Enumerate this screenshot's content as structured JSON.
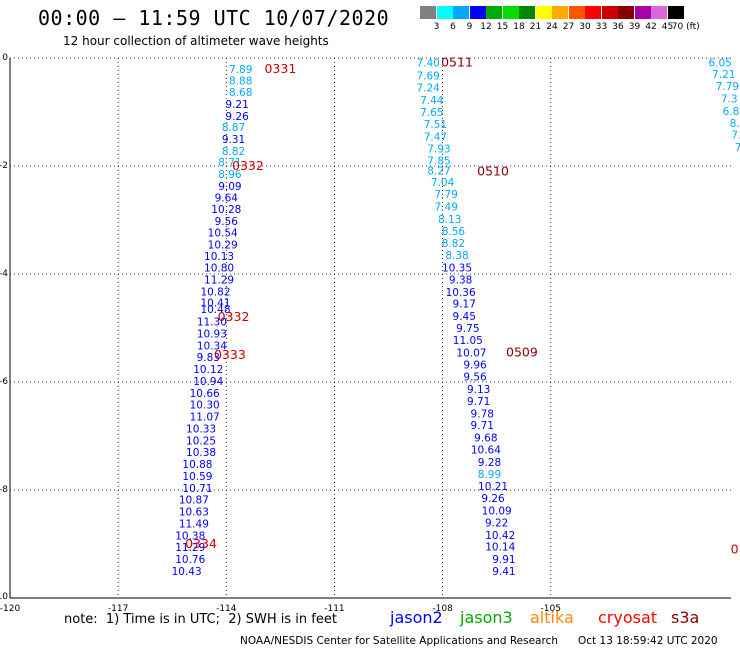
{
  "header": {
    "title": "00:00 — 11:59 UTC 10/07/2020",
    "subtitle": "12 hour collection of altimeter wave heights"
  },
  "colorbar": {
    "labels": [
      "3",
      "6",
      "9",
      "12",
      "15",
      "18",
      "21",
      "24",
      "27",
      "30",
      "33",
      "36",
      "39",
      "42",
      "45",
      "70 (ft)"
    ],
    "colors": [
      "#808080",
      "#00ffff",
      "#00aaff",
      "#0000ff",
      "#00aa00",
      "#00dd00",
      "#008800",
      "#ffff00",
      "#ffaa00",
      "#ff5500",
      "#ff0000",
      "#cc0000",
      "#880000",
      "#aa00aa",
      "#dd66dd",
      "#000000"
    ]
  },
  "chart_data": {
    "type": "scatter",
    "xlim": [
      -120,
      -100
    ],
    "ylim": [
      -10,
      0
    ],
    "x_ticks": [
      "-120",
      "-117",
      "-114",
      "-111",
      "-108",
      "-105"
    ],
    "y_ticks": [
      "0",
      "-2",
      "-4",
      "-6",
      "-8",
      "-10"
    ],
    "grid": true,
    "points": [
      {
        "x": -113.6,
        "y": -0.2,
        "v": "7.89",
        "c": "#00aaff"
      },
      {
        "x": -113.6,
        "y": -0.42,
        "v": "8.88",
        "c": "#00aaff"
      },
      {
        "x": -113.6,
        "y": -0.63,
        "v": "8.68",
        "c": "#00aaff"
      },
      {
        "x": -113.7,
        "y": -0.85,
        "v": "9.21",
        "c": "#0000ff"
      },
      {
        "x": -113.7,
        "y": -1.07,
        "v": "9.26",
        "c": "#0000ff"
      },
      {
        "x": -113.8,
        "y": -1.28,
        "v": "8.87",
        "c": "#00aaff"
      },
      {
        "x": -113.8,
        "y": -1.5,
        "v": "9.31",
        "c": "#0000ff"
      },
      {
        "x": -113.8,
        "y": -1.72,
        "v": "8.82",
        "c": "#00aaff"
      },
      {
        "x": -113.9,
        "y": -1.93,
        "v": "8.71",
        "c": "#00aaff"
      },
      {
        "x": -113.9,
        "y": -2.15,
        "v": "8.96",
        "c": "#00aaff"
      },
      {
        "x": -113.9,
        "y": -2.37,
        "v": "9.09",
        "c": "#0000ff"
      },
      {
        "x": -114.0,
        "y": -2.58,
        "v": "9.64",
        "c": "#0000ff"
      },
      {
        "x": -114.0,
        "y": -2.8,
        "v": "10.28",
        "c": "#0000ff"
      },
      {
        "x": -114.0,
        "y": -3.02,
        "v": "9.56",
        "c": "#0000ff"
      },
      {
        "x": -114.1,
        "y": -3.23,
        "v": "10.54",
        "c": "#0000ff"
      },
      {
        "x": -114.1,
        "y": -3.45,
        "v": "10.29",
        "c": "#0000ff"
      },
      {
        "x": -114.2,
        "y": -3.67,
        "v": "10.13",
        "c": "#0000ff"
      },
      {
        "x": -114.2,
        "y": -3.88,
        "v": "10.80",
        "c": "#0000ff"
      },
      {
        "x": -114.2,
        "y": -4.1,
        "v": "11.29",
        "c": "#0000ff"
      },
      {
        "x": -114.3,
        "y": -4.32,
        "v": "10.82",
        "c": "#0000ff"
      },
      {
        "x": -114.3,
        "y": -4.53,
        "v": "10.41",
        "c": "#0000ff"
      },
      {
        "x": -114.3,
        "y": -4.65,
        "v": "10.48",
        "c": "#0000ff"
      },
      {
        "x": -114.4,
        "y": -4.88,
        "v": "11.30",
        "c": "#0000ff"
      },
      {
        "x": -114.4,
        "y": -5.1,
        "v": "10.93",
        "c": "#0000ff"
      },
      {
        "x": -114.4,
        "y": -5.32,
        "v": "10.34",
        "c": "#0000ff"
      },
      {
        "x": -114.5,
        "y": -5.54,
        "v": "9.83",
        "c": "#0000ff"
      },
      {
        "x": -114.5,
        "y": -5.76,
        "v": "10.12",
        "c": "#0000ff"
      },
      {
        "x": -114.5,
        "y": -5.98,
        "v": "10.94",
        "c": "#0000ff"
      },
      {
        "x": -114.6,
        "y": -6.2,
        "v": "10.66",
        "c": "#0000ff"
      },
      {
        "x": -114.6,
        "y": -6.42,
        "v": "10.30",
        "c": "#0000ff"
      },
      {
        "x": -114.6,
        "y": -6.64,
        "v": "11.07",
        "c": "#0000ff"
      },
      {
        "x": -114.7,
        "y": -6.86,
        "v": "10.33",
        "c": "#0000ff"
      },
      {
        "x": -114.7,
        "y": -7.08,
        "v": "10.25",
        "c": "#0000ff"
      },
      {
        "x": -114.7,
        "y": -7.3,
        "v": "10.38",
        "c": "#0000ff"
      },
      {
        "x": -114.8,
        "y": -7.52,
        "v": "10.88",
        "c": "#0000ff"
      },
      {
        "x": -114.8,
        "y": -7.74,
        "v": "10.59",
        "c": "#0000ff"
      },
      {
        "x": -114.8,
        "y": -7.96,
        "v": "10.71",
        "c": "#0000ff"
      },
      {
        "x": -114.9,
        "y": -8.18,
        "v": "10.87",
        "c": "#0000ff"
      },
      {
        "x": -114.9,
        "y": -8.4,
        "v": "10.63",
        "c": "#0000ff"
      },
      {
        "x": -114.9,
        "y": -8.62,
        "v": "11.49",
        "c": "#0000ff"
      },
      {
        "x": -115.0,
        "y": -8.84,
        "v": "10.38",
        "c": "#0000ff"
      },
      {
        "x": -115.0,
        "y": -9.06,
        "v": "11.29",
        "c": "#0000ff"
      },
      {
        "x": -115.0,
        "y": -9.28,
        "v": "10.76",
        "c": "#0000ff"
      },
      {
        "x": -115.1,
        "y": -9.5,
        "v": "10.43",
        "c": "#0000ff"
      },
      {
        "x": -108.4,
        "y": -0.08,
        "v": "7.40",
        "c": "#00aaff"
      },
      {
        "x": -108.4,
        "y": -0.32,
        "v": "7.69",
        "c": "#00aaff"
      },
      {
        "x": -108.4,
        "y": -0.55,
        "v": "7.24",
        "c": "#00aaff"
      },
      {
        "x": -108.3,
        "y": -0.78,
        "v": "7.44",
        "c": "#00aaff"
      },
      {
        "x": -108.3,
        "y": -1.0,
        "v": "7.65",
        "c": "#00aaff"
      },
      {
        "x": -108.2,
        "y": -1.22,
        "v": "7.51",
        "c": "#00aaff"
      },
      {
        "x": -108.2,
        "y": -1.45,
        "v": "7.47",
        "c": "#00aaff"
      },
      {
        "x": -108.1,
        "y": -1.68,
        "v": "7.93",
        "c": "#00aaff"
      },
      {
        "x": -108.1,
        "y": -1.9,
        "v": "7.85",
        "c": "#00aaff"
      },
      {
        "x": -108.1,
        "y": -2.08,
        "v": "8.27",
        "c": "#00aaff"
      },
      {
        "x": -108.0,
        "y": -2.3,
        "v": "7.04",
        "c": "#00aaff"
      },
      {
        "x": -107.9,
        "y": -2.52,
        "v": "7.79",
        "c": "#00aaff"
      },
      {
        "x": -107.9,
        "y": -2.75,
        "v": "7.49",
        "c": "#00aaff"
      },
      {
        "x": -107.8,
        "y": -2.98,
        "v": "8.13",
        "c": "#00aaff"
      },
      {
        "x": -107.7,
        "y": -3.2,
        "v": "8.56",
        "c": "#00aaff"
      },
      {
        "x": -107.7,
        "y": -3.43,
        "v": "8.82",
        "c": "#00aaff"
      },
      {
        "x": -107.6,
        "y": -3.65,
        "v": "8.38",
        "c": "#00aaff"
      },
      {
        "x": -107.6,
        "y": -3.88,
        "v": "10.35",
        "c": "#0000ff"
      },
      {
        "x": -107.5,
        "y": -4.1,
        "v": "9.38",
        "c": "#0000ff"
      },
      {
        "x": -107.5,
        "y": -4.33,
        "v": "10.36",
        "c": "#0000ff"
      },
      {
        "x": -107.4,
        "y": -4.55,
        "v": "9.17",
        "c": "#0000ff"
      },
      {
        "x": -107.4,
        "y": -4.78,
        "v": "9.45",
        "c": "#0000ff"
      },
      {
        "x": -107.3,
        "y": -5.0,
        "v": "9.75",
        "c": "#0000ff"
      },
      {
        "x": -107.3,
        "y": -5.22,
        "v": "11.05",
        "c": "#0000ff"
      },
      {
        "x": -107.2,
        "y": -5.45,
        "v": "10.07",
        "c": "#0000ff"
      },
      {
        "x": -107.1,
        "y": -5.68,
        "v": "9.96",
        "c": "#0000ff"
      },
      {
        "x": -107.1,
        "y": -5.9,
        "v": "9.56",
        "c": "#0000ff"
      },
      {
        "x": -107.0,
        "y": -6.13,
        "v": "9.13",
        "c": "#0000ff"
      },
      {
        "x": -107.0,
        "y": -6.35,
        "v": "9.71",
        "c": "#0000ff"
      },
      {
        "x": -106.9,
        "y": -6.58,
        "v": "9.78",
        "c": "#0000ff"
      },
      {
        "x": -106.9,
        "y": -6.8,
        "v": "9.71",
        "c": "#0000ff"
      },
      {
        "x": -106.8,
        "y": -7.03,
        "v": "9.68",
        "c": "#0000ff"
      },
      {
        "x": -106.8,
        "y": -7.25,
        "v": "10.64",
        "c": "#0000ff"
      },
      {
        "x": -106.7,
        "y": -7.48,
        "v": "9.28",
        "c": "#0000ff"
      },
      {
        "x": -106.7,
        "y": -7.7,
        "v": "8.99",
        "c": "#00aaff"
      },
      {
        "x": -106.6,
        "y": -7.93,
        "v": "10.21",
        "c": "#0000ff"
      },
      {
        "x": -106.6,
        "y": -8.15,
        "v": "9.26",
        "c": "#0000ff"
      },
      {
        "x": -106.5,
        "y": -8.38,
        "v": "10.09",
        "c": "#0000ff"
      },
      {
        "x": -106.5,
        "y": -8.6,
        "v": "9.22",
        "c": "#0000ff"
      },
      {
        "x": -106.4,
        "y": -8.83,
        "v": "10.42",
        "c": "#0000ff"
      },
      {
        "x": -106.4,
        "y": -9.05,
        "v": "10.14",
        "c": "#0000ff"
      },
      {
        "x": -106.3,
        "y": -9.28,
        "v": "9.91",
        "c": "#0000ff"
      },
      {
        "x": -106.3,
        "y": -9.5,
        "v": "9.41",
        "c": "#0000ff"
      },
      {
        "x": -100.3,
        "y": -0.08,
        "v": "6.05",
        "c": "#00aaff"
      },
      {
        "x": -100.2,
        "y": -0.3,
        "v": "7.21",
        "c": "#00aaff"
      },
      {
        "x": -100.1,
        "y": -0.52,
        "v": "7.79",
        "c": "#00aaff"
      },
      {
        "x": -100.05,
        "y": -0.75,
        "v": "7.3",
        "c": "#00aaff"
      },
      {
        "x": -100.0,
        "y": -0.98,
        "v": "6.8",
        "c": "#00aaff"
      },
      {
        "x": -99.9,
        "y": -1.2,
        "v": "8.",
        "c": "#00aaff"
      },
      {
        "x": -99.85,
        "y": -1.42,
        "v": "7.",
        "c": "#00aaff"
      },
      {
        "x": -99.8,
        "y": -1.65,
        "v": "7",
        "c": "#00aaff"
      }
    ],
    "time_labels": [
      {
        "x": -112.5,
        "y": -0.2,
        "t": "0331",
        "c": "#cc0000"
      },
      {
        "x": -113.4,
        "y": -2.0,
        "t": "0332",
        "c": "#cc0000"
      },
      {
        "x": -113.8,
        "y": -4.8,
        "t": "0332",
        "c": "#cc0000"
      },
      {
        "x": -113.9,
        "y": -5.5,
        "t": "0333",
        "c": "#cc0000"
      },
      {
        "x": -114.7,
        "y": -9.0,
        "t": "0334",
        "c": "#cc0000"
      },
      {
        "x": -107.6,
        "y": -0.08,
        "t": "0511",
        "c": "#880000"
      },
      {
        "x": -106.6,
        "y": -2.1,
        "t": "0510",
        "c": "#880000"
      },
      {
        "x": -105.8,
        "y": -5.45,
        "t": "0509",
        "c": "#880000"
      },
      {
        "x": -99.9,
        "y": -9.1,
        "t": "0",
        "c": "#cc0000"
      }
    ]
  },
  "footer": {
    "note": "note:  1) Time is in UTC;  2) SWH is in feet",
    "legend": [
      {
        "label": "jason2",
        "color": "#0000ff"
      },
      {
        "label": "jason3",
        "color": "#00aa00"
      },
      {
        "label": "altika",
        "color": "#ff8800"
      },
      {
        "label": "cryosat",
        "color": "#ff0000"
      },
      {
        "label": "s3a",
        "color": "#880000"
      }
    ],
    "credit": "NOAA/NESDIS Center for Satellite Applications and Research      Oct 13 18:59:42 UTC 2020"
  }
}
